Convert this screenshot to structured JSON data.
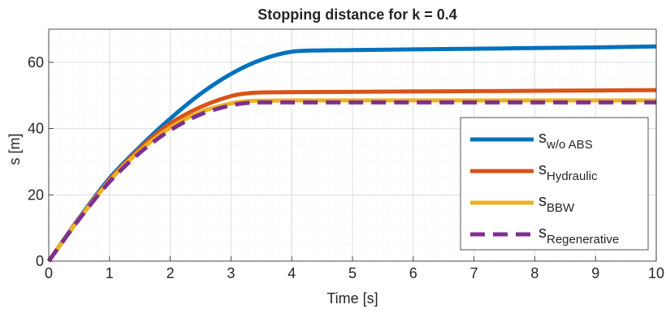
{
  "chart_data": {
    "type": "line",
    "title": "Stopping distance for k = 0.4",
    "xlabel": "Time [s]",
    "ylabel": "s [m]",
    "xlim": [
      0,
      10
    ],
    "ylim": [
      0,
      70
    ],
    "xticks": [
      0,
      1,
      2,
      3,
      4,
      5,
      6,
      7,
      8,
      9,
      10
    ],
    "yticks": [
      0,
      20,
      40,
      60
    ],
    "grid": "major and minor (dotted)",
    "legend_position": "right, lower-middle",
    "series": [
      {
        "name_base": "s",
        "name_sub": "w/o ABS",
        "color": "#0072BD",
        "style": "solid",
        "x": [
          0,
          0.5,
          1,
          1.5,
          2,
          2.5,
          3,
          3.5,
          4,
          4.5,
          5,
          6,
          7,
          8,
          9,
          10
        ],
        "y": [
          0,
          13,
          25,
          34.5,
          43,
          50.5,
          56.5,
          60.8,
          63.2,
          63.6,
          63.7,
          63.9,
          64.1,
          64.3,
          64.5,
          64.8
        ]
      },
      {
        "name_base": "s",
        "name_sub": "Hydraulic",
        "color": "#D95319",
        "style": "solid",
        "x": [
          0,
          0.5,
          1,
          1.5,
          2,
          2.5,
          3,
          3.3,
          3.5,
          4,
          5,
          6,
          7,
          8,
          9,
          10
        ],
        "y": [
          0,
          12.8,
          24.5,
          34,
          41.5,
          46.5,
          49.8,
          50.7,
          50.9,
          51,
          51.1,
          51.2,
          51.3,
          51.4,
          51.5,
          51.6
        ]
      },
      {
        "name_base": "s",
        "name_sub": "BBW",
        "color": "#EDB120",
        "style": "solid",
        "x": [
          0,
          0.5,
          1,
          1.5,
          2,
          2.5,
          3,
          3.3,
          3.5,
          4,
          5,
          6,
          7,
          8,
          9,
          10
        ],
        "y": [
          0,
          12.7,
          24.2,
          33.3,
          40.3,
          45,
          47.6,
          48.3,
          48.4,
          48.5,
          48.5,
          48.5,
          48.5,
          48.5,
          48.5,
          48.5
        ]
      },
      {
        "name_base": "s",
        "name_sub": "Regenerative",
        "color": "#7E2F8E",
        "style": "dashed",
        "x": [
          0,
          0.5,
          1,
          1.5,
          2,
          2.5,
          3,
          3.3,
          3.5,
          4,
          5,
          6,
          7,
          8,
          9,
          10
        ],
        "y": [
          0,
          12.6,
          23.9,
          32.7,
          39.5,
          44.3,
          47,
          47.8,
          47.9,
          47.9,
          47.9,
          47.9,
          47.9,
          47.9,
          47.9,
          47.9
        ]
      }
    ]
  }
}
